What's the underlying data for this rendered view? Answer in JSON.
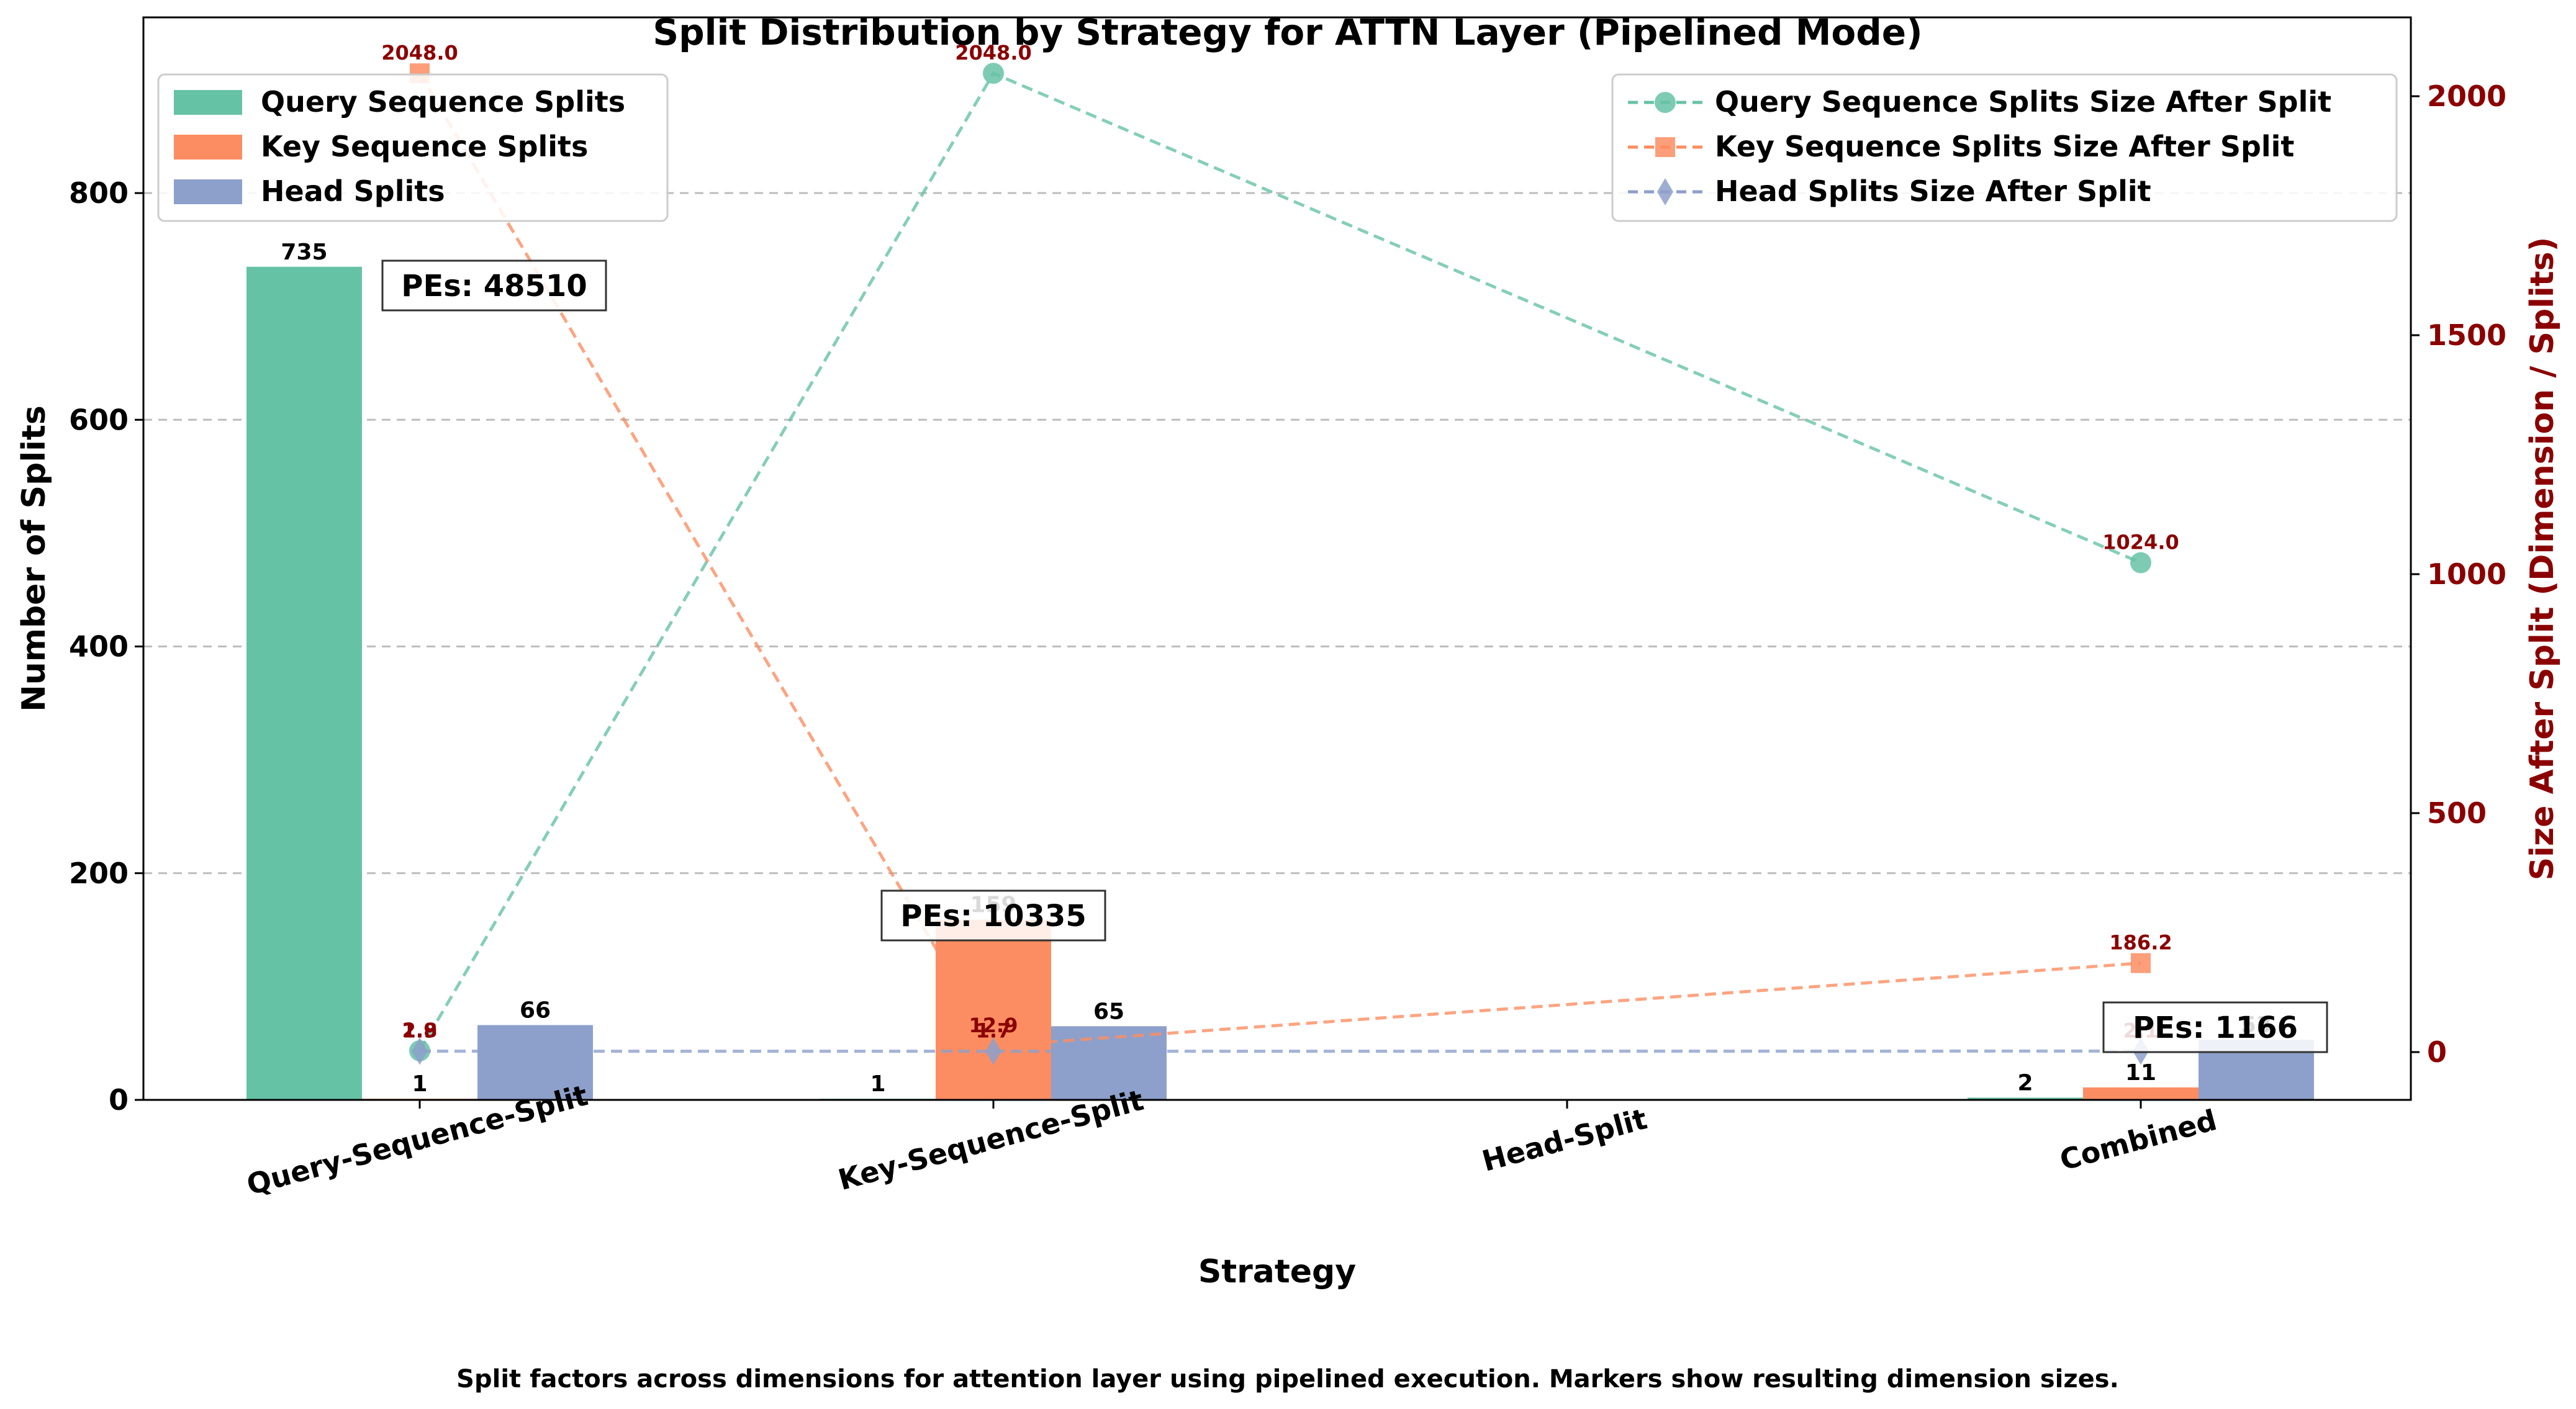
{
  "chart_data": {
    "type": "bar",
    "title": "Split Distribution by Strategy for ATTN Layer (Pipelined Mode)",
    "xlabel": "Strategy",
    "ylabel": "Number of Splits",
    "y2label": "Size After Split (Dimension / Splits)",
    "caption": "Split factors across dimensions for attention layer using pipelined execution. Markers show resulting dimension sizes.",
    "categories": [
      "Query-Sequence-Split",
      "Key-Sequence-Split",
      "Head-Split",
      "Combined"
    ],
    "ylim": [
      0,
      955
    ],
    "y2lim": [
      -100,
      2165
    ],
    "yticks": [
      0,
      200,
      400,
      600,
      800
    ],
    "y2ticks": [
      0,
      500,
      1000,
      1500,
      2000
    ],
    "grid": "horizontal dashed",
    "series": [
      {
        "name": "Query Sequence Splits",
        "color": "#66c2a5",
        "values": [
          735,
          1,
          0,
          2
        ],
        "labels": [
          "735",
          "1",
          "",
          "2"
        ]
      },
      {
        "name": "Key Sequence Splits",
        "color": "#fc8d62",
        "values": [
          1,
          159,
          0,
          11
        ],
        "labels": [
          "1",
          "159",
          "",
          "11"
        ]
      },
      {
        "name": "Head Splits",
        "color": "#8da0cb",
        "values": [
          66,
          65,
          0,
          53
        ],
        "labels": [
          "66",
          "65",
          "",
          "53"
        ]
      }
    ],
    "line_series": [
      {
        "name": "Query Sequence Splits Size After Split",
        "color": "#66c2a5",
        "marker": "circle",
        "points": [
          [
            0,
            2.8
          ],
          [
            1,
            2048.0
          ],
          [
            3,
            1024.0
          ]
        ],
        "labels": [
          "2.8",
          "2048.0",
          "1024.0"
        ]
      },
      {
        "name": "Key Sequence Splits Size After Split",
        "color": "#fc8d62",
        "marker": "square",
        "points": [
          [
            0,
            2048.0
          ],
          [
            1,
            12.9
          ],
          [
            3,
            186.2
          ]
        ],
        "labels": [
          "2048.0",
          "12.9",
          "186.2"
        ]
      },
      {
        "name": "Head Splits Size After Split",
        "color": "#8da0cb",
        "marker": "diamond",
        "points": [
          [
            0,
            1.9
          ],
          [
            1,
            1.7
          ],
          [
            3,
            2.1
          ]
        ],
        "labels": [
          "1.9",
          "1.7",
          "2.1"
        ]
      }
    ],
    "annotations": [
      {
        "category": 0,
        "text": "PEs: 48510"
      },
      {
        "category": 1,
        "text": "PEs: 10335"
      },
      {
        "category": 3,
        "text": "PEs: 1166"
      }
    ],
    "legend_bars_placement": "top-left",
    "legend_lines_placement": "top-right"
  }
}
